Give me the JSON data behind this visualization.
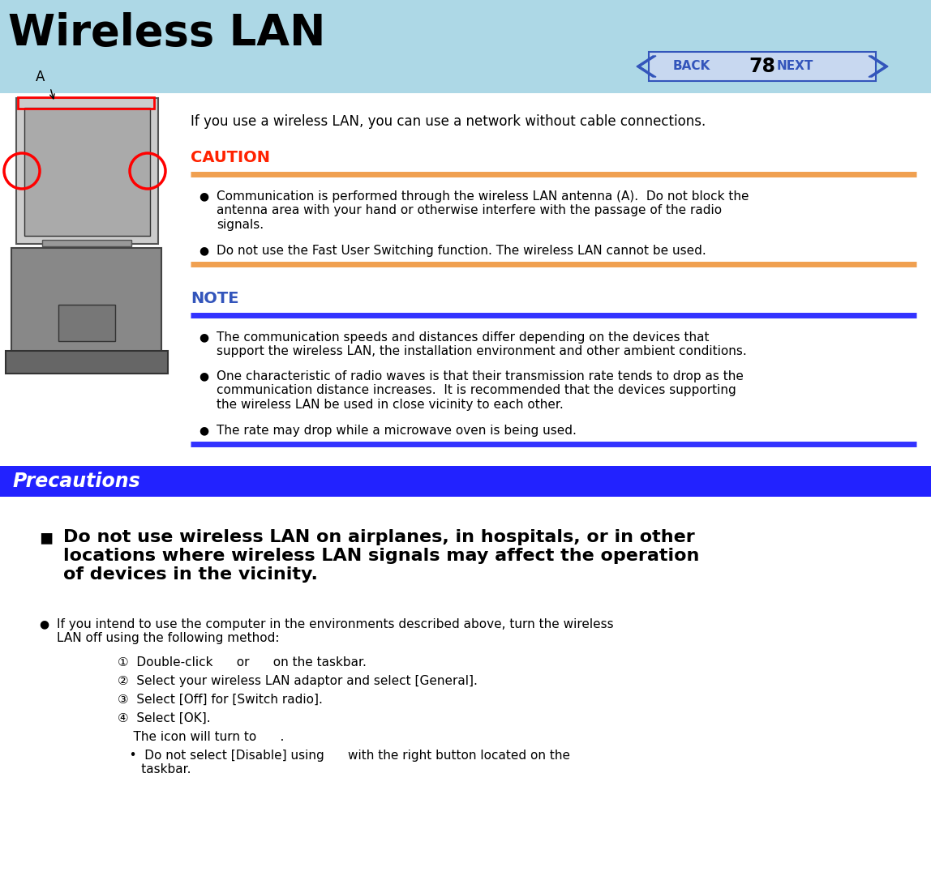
{
  "page_bg": "#ffffff",
  "header_bg": "#add8e6",
  "header_title": "Wireless LAN",
  "header_title_color": "#000000",
  "header_title_fontsize": 38,
  "page_number": "78",
  "back_next_color": "#3355bb",
  "intro_text": "If you use a wireless LAN, you can use a network without cable connections.",
  "caution_label": "CAUTION",
  "caution_color": "#ff2200",
  "caution_line_color": "#f0a050",
  "caution_bullets": [
    "Communication is performed through the wireless LAN antenna (A).  Do not block the\nantenna area with your hand or otherwise interfere with the passage of the radio\nsignals.",
    "Do not use the Fast User Switching function. The wireless LAN cannot be used."
  ],
  "note_label": "NOTE",
  "note_color": "#3355bb",
  "note_line_color": "#3333ff",
  "note_bullets": [
    "The communication speeds and distances differ depending on the devices that\nsupport the wireless LAN, the installation environment and other ambient conditions.",
    "One characteristic of radio waves is that their transmission rate tends to drop as the\ncommunication distance increases.  It is recommended that the devices supporting\nthe wireless LAN be used in close vicinity to each other.",
    "The rate may drop while a microwave oven is being used."
  ],
  "precautions_label": "Precautions",
  "precautions_bg": "#2222ff",
  "precautions_text_color": "#ffffff",
  "precautions_square_bullet": "Do not use wireless LAN on airplanes, in hospitals, or in other\nlocations where wireless LAN signals may affect the operation\nof devices in the vicinity.",
  "precautions_bullets": [
    "If you intend to use the computer in the environments described above, turn the wireless\nLAN off using the following method:"
  ],
  "steps": [
    "①  Double-click      or      on the taskbar.",
    "②  Select your wireless LAN adaptor and select [General].",
    "③  Select [Off] for [Switch radio].",
    "④  Select [OK].",
    "    The icon will turn to      .",
    "   •  Do not select [Disable] using      with the right button located on the\n      taskbar."
  ],
  "body_fontsize": 11,
  "body_text_color": "#000000"
}
